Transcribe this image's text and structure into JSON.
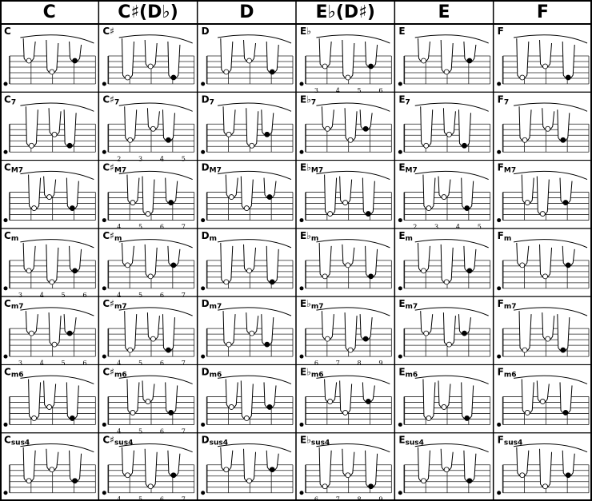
{
  "header": {
    "columns": [
      "C",
      "C♯(D♭)",
      "D",
      "E♭(D♯)",
      "E",
      "F"
    ]
  },
  "rows": [
    [
      {
        "root": "C",
        "suffix": ""
      },
      {
        "root": "C♯",
        "suffix": ""
      },
      {
        "root": "D",
        "suffix": ""
      },
      {
        "root": "E♭",
        "suffix": "",
        "frets": [
          "3",
          "4",
          "5",
          "6"
        ]
      },
      {
        "root": "E",
        "suffix": ""
      },
      {
        "root": "F",
        "suffix": ""
      }
    ],
    [
      {
        "root": "C",
        "suffix": "7"
      },
      {
        "root": "C♯",
        "suffix": "7",
        "frets": [
          "2",
          "3",
          "4",
          "5"
        ]
      },
      {
        "root": "D",
        "suffix": "7"
      },
      {
        "root": "E♭",
        "suffix": "7"
      },
      {
        "root": "E",
        "suffix": "7"
      },
      {
        "root": "F",
        "suffix": "7"
      }
    ],
    [
      {
        "root": "C",
        "suffix": "M7"
      },
      {
        "root": "C♯",
        "suffix": "M7",
        "frets": [
          "4",
          "5",
          "6",
          "7"
        ]
      },
      {
        "root": "D",
        "suffix": "M7"
      },
      {
        "root": "E♭",
        "suffix": "M7"
      },
      {
        "root": "E",
        "suffix": "M7",
        "frets": [
          "2",
          "3",
          "4",
          "5"
        ]
      },
      {
        "root": "F",
        "suffix": "M7"
      }
    ],
    [
      {
        "root": "C",
        "suffix": "m",
        "frets": [
          "3",
          "4",
          "5",
          "6"
        ]
      },
      {
        "root": "C♯",
        "suffix": "m",
        "frets": [
          "4",
          "5",
          "6",
          "7"
        ]
      },
      {
        "root": "D",
        "suffix": "m"
      },
      {
        "root": "E♭",
        "suffix": "m"
      },
      {
        "root": "E",
        "suffix": "m"
      },
      {
        "root": "F",
        "suffix": "m"
      }
    ],
    [
      {
        "root": "C",
        "suffix": "m7",
        "frets": [
          "3",
          "4",
          "5",
          "6"
        ]
      },
      {
        "root": "C♯",
        "suffix": "m7",
        "frets": [
          "4",
          "5",
          "6",
          "7"
        ]
      },
      {
        "root": "D",
        "suffix": "m7"
      },
      {
        "root": "E♭",
        "suffix": "m7",
        "frets": [
          "6",
          "7",
          "8",
          "9"
        ]
      },
      {
        "root": "E",
        "suffix": "m7"
      },
      {
        "root": "F",
        "suffix": "m7"
      }
    ],
    [
      {
        "root": "C",
        "suffix": "m6"
      },
      {
        "root": "C♯",
        "suffix": "m6",
        "frets": [
          "4",
          "5",
          "6",
          "7"
        ]
      },
      {
        "root": "D",
        "suffix": "m6"
      },
      {
        "root": "E♭",
        "suffix": "m6"
      },
      {
        "root": "E",
        "suffix": "m6"
      },
      {
        "root": "F",
        "suffix": "m6"
      }
    ],
    [
      {
        "root": "C",
        "suffix": "sus4"
      },
      {
        "root": "C♯",
        "suffix": "sus4",
        "frets": [
          "4",
          "5",
          "6",
          "7"
        ]
      },
      {
        "root": "D",
        "suffix": "sus4"
      },
      {
        "root": "E♭",
        "suffix": "sus4",
        "frets": [
          "6",
          "7",
          "8",
          "9"
        ]
      },
      {
        "root": "E",
        "suffix": "sus4"
      },
      {
        "root": "F",
        "suffix": "sus4"
      }
    ]
  ]
}
